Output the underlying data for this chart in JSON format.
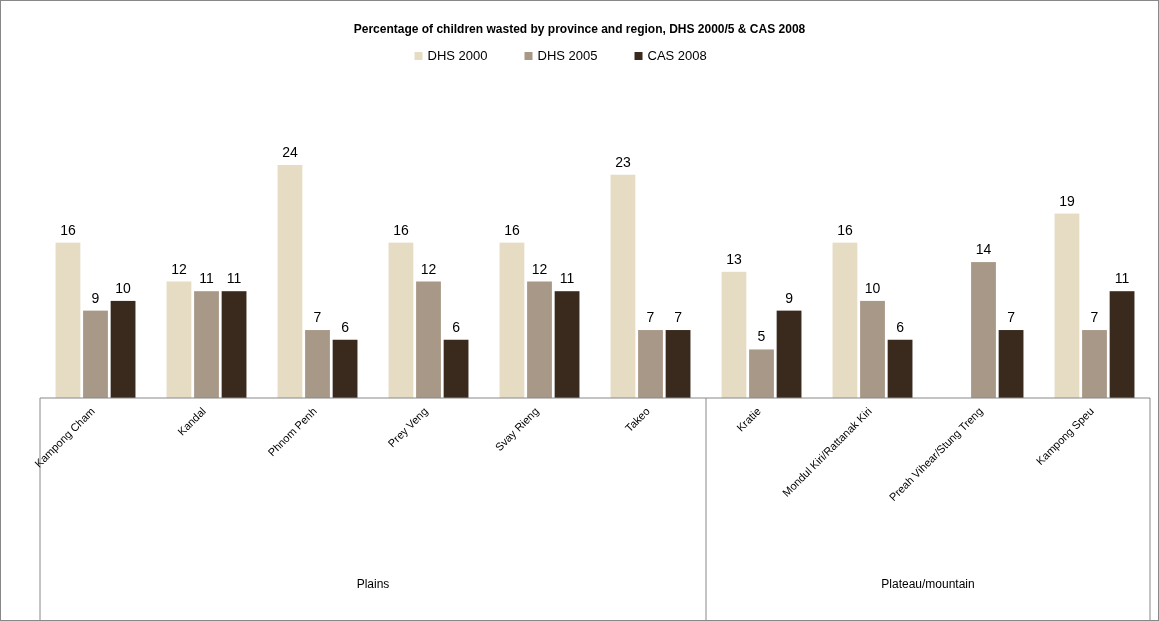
{
  "chart_data": {
    "type": "bar",
    "title": "Percentage of children wasted by province and region, DHS 2000/5 & CAS 2008",
    "categories": [
      "Kampong Cham",
      "Kandal",
      "Phnom Penh",
      "Prey Veng",
      "Svay Rieng",
      "Takeo",
      "Kratie",
      "Mondul Kiri/Rattanak Kiri",
      "Preah Vihear/Stung Treng",
      "Kampong Speu"
    ],
    "series": [
      {
        "name": "DHS 2000",
        "color": "#e6dcc4",
        "values": [
          16,
          12,
          24,
          16,
          16,
          23,
          13,
          16,
          null,
          19
        ]
      },
      {
        "name": "DHS 2005",
        "color": "#a89888",
        "values": [
          9,
          11,
          7,
          12,
          12,
          7,
          5,
          10,
          14,
          7
        ]
      },
      {
        "name": "CAS 2008",
        "color": "#3a2a1e",
        "values": [
          10,
          11,
          6,
          6,
          11,
          7,
          9,
          6,
          7,
          11
        ]
      }
    ],
    "data_labels": true,
    "legend": "top",
    "tick_labels": "x",
    "annotations": [
      "Plains",
      "Plateau/mountain"
    ]
  }
}
